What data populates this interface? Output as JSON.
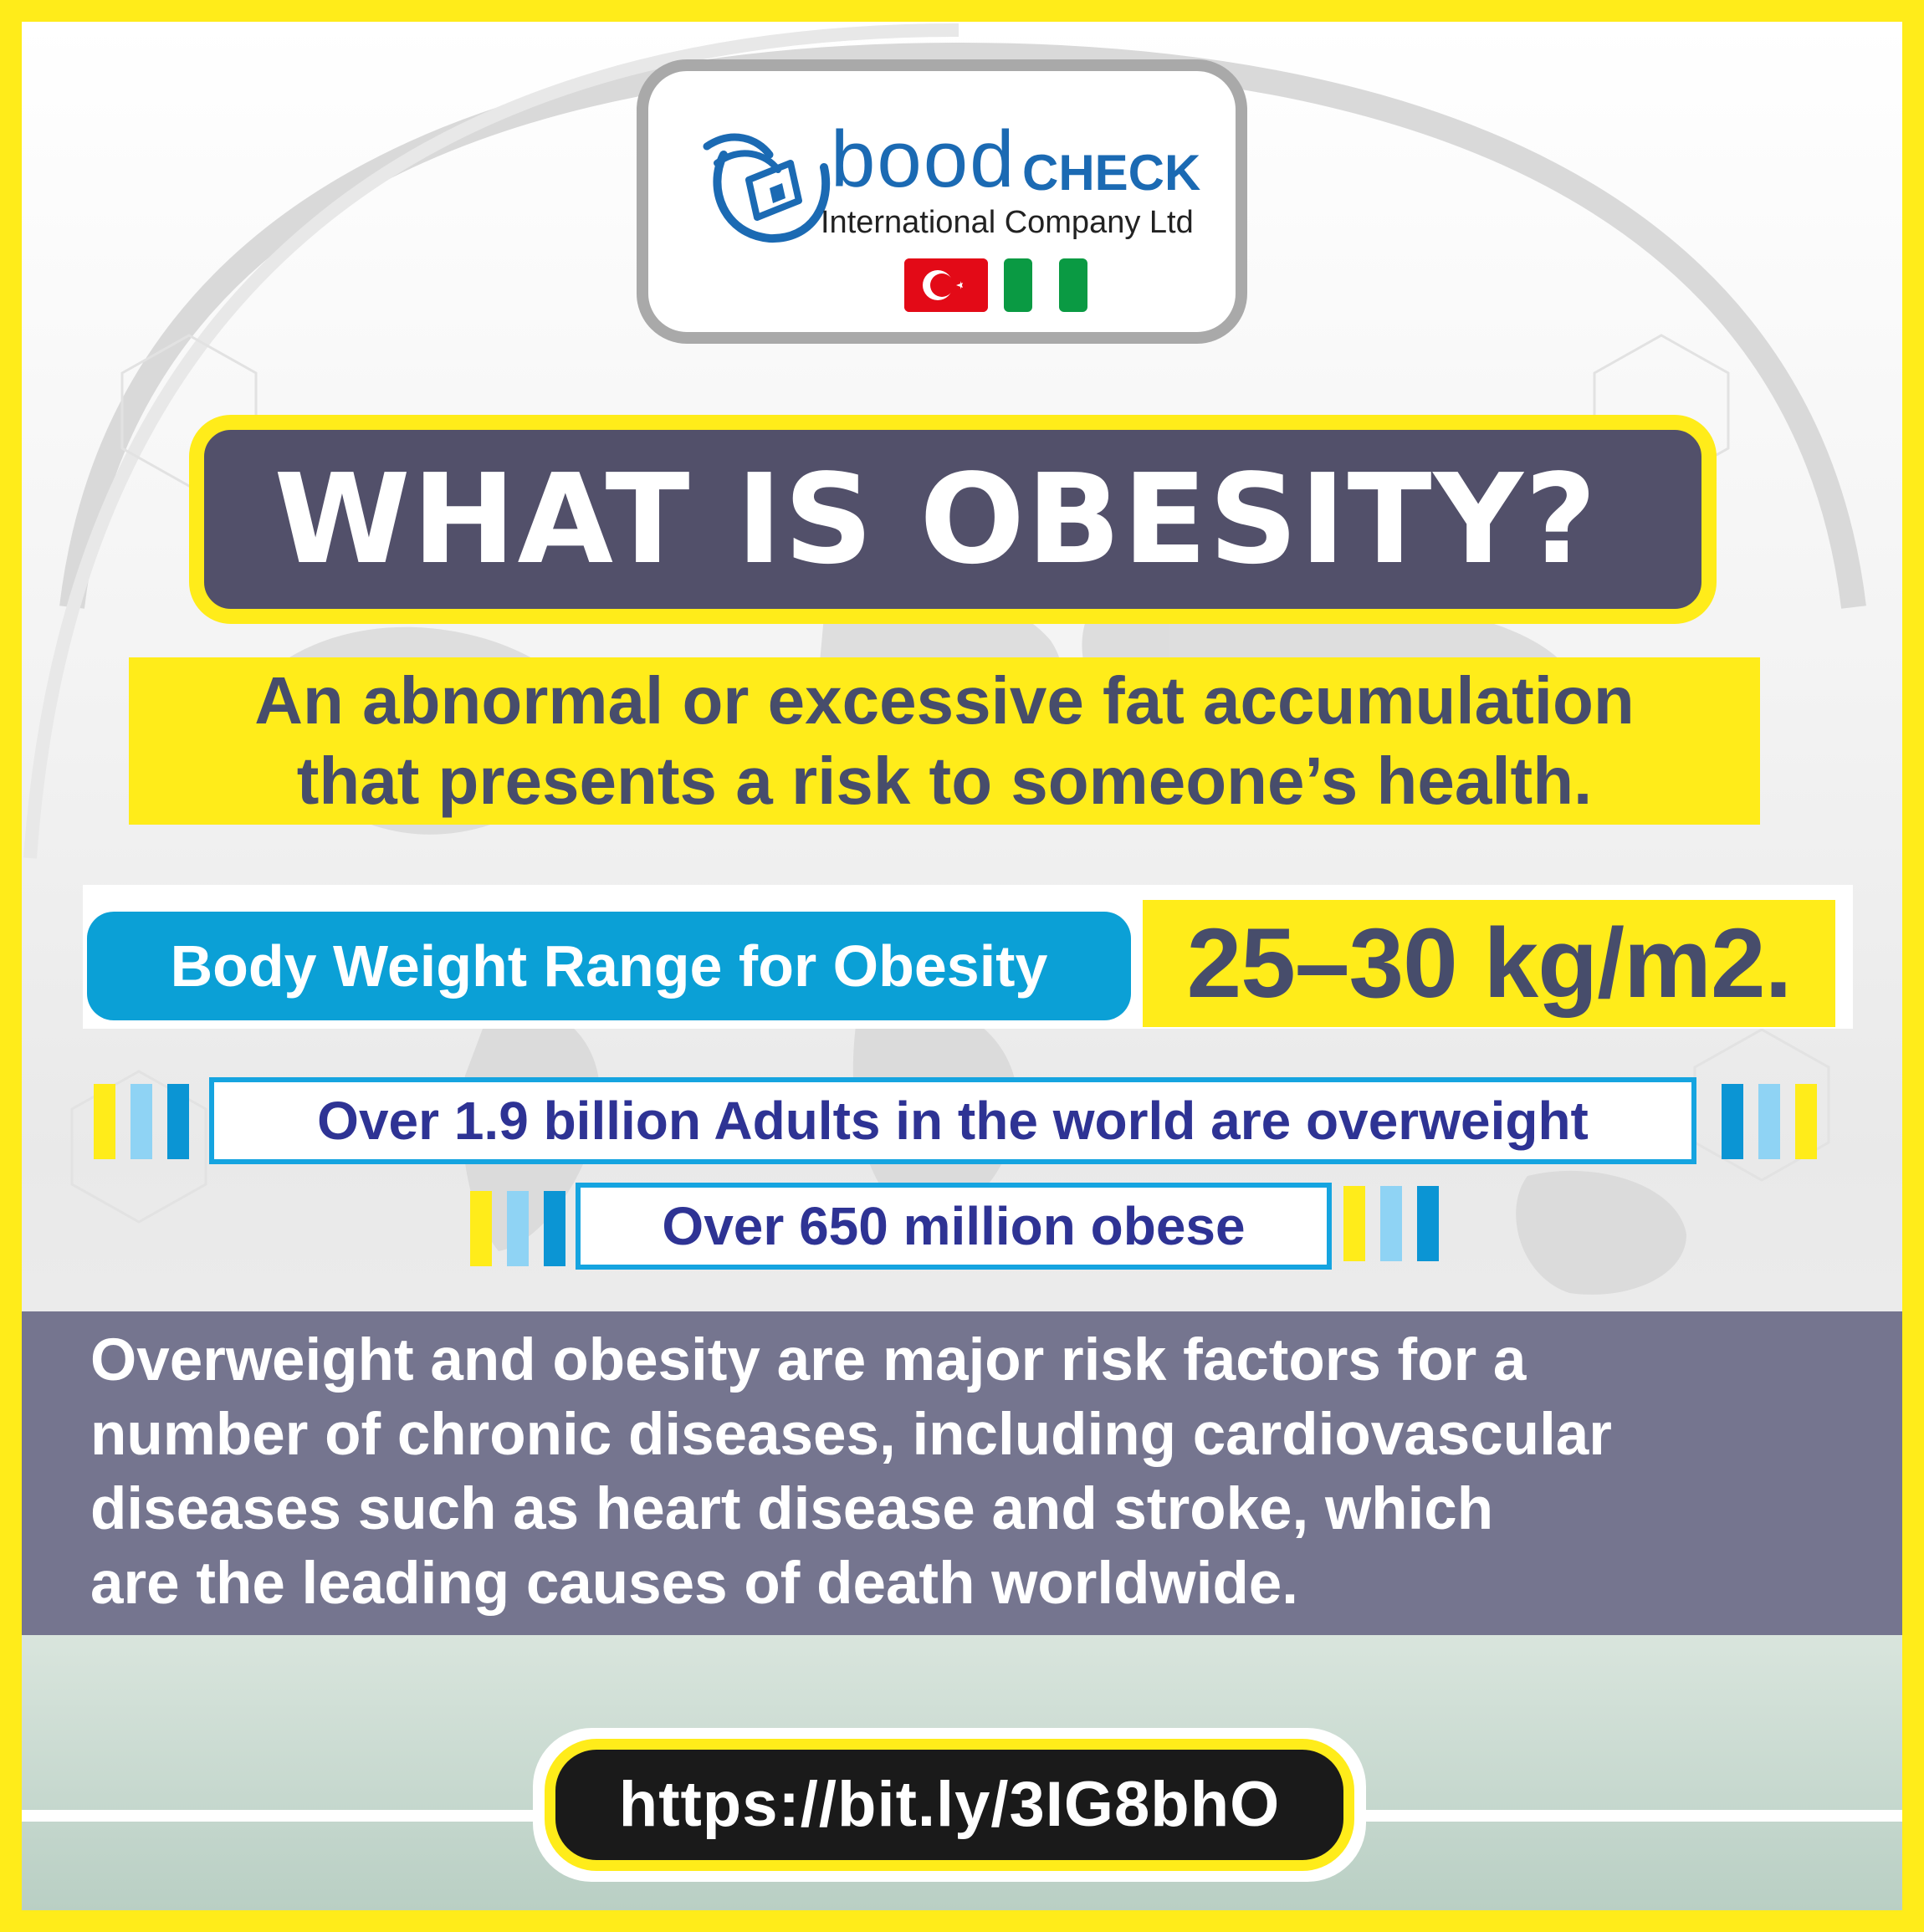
{
  "logo": {
    "brand_name": "bood",
    "brand_check": "CHECK",
    "company": "International Company Ltd",
    "flags": [
      "turkey-flag",
      "nigeria-flag"
    ]
  },
  "title": "WHAT IS OBESITY?",
  "definition": {
    "line1": "An abnormal or excessive fat accumulation",
    "line2": "that presents a risk to someone’s health."
  },
  "bmi": {
    "label": "Body Weight Range for Obesity",
    "value": "25–30 kg/m2."
  },
  "stats": [
    "Over 1.9 billion Adults in the world are overweight",
    "Over 650 million obese"
  ],
  "risk": {
    "line1": "Overweight and obesity are major risk factors for a",
    "line2": "number of chronic diseases, including cardiovascular",
    "line3": "diseases such as heart disease and stroke, which",
    "line4": "are the leading causes of death worldwide."
  },
  "url": "https://bit.ly/3IG8bhO",
  "colors": {
    "yellow": "#ffec1a",
    "title_bg": "#52506a",
    "text_navy": "#474d6b",
    "blue": "#0ba0d6",
    "light_blue": "#8fd3f4",
    "stat_text": "#2e3394",
    "risk_bg": "#75758f",
    "brand_blue": "#1b6ab3"
  }
}
